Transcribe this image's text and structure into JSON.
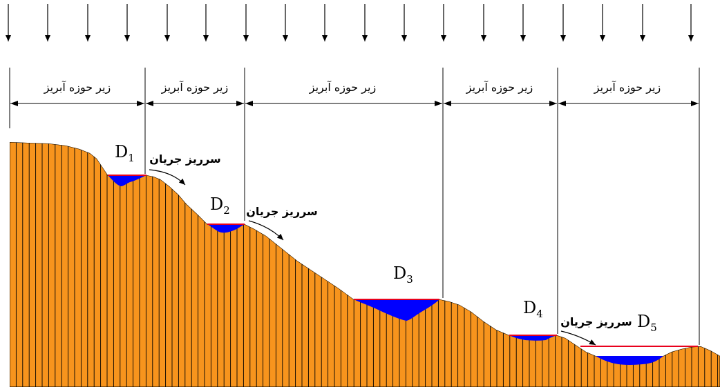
{
  "subwatershed_label": "زیر حوزه آبریز",
  "overflow_label": "سرریز جریان",
  "depressions": [
    {
      "letter": "D",
      "index": "1"
    },
    {
      "letter": "D",
      "index": "2"
    },
    {
      "letter": "D",
      "index": "3"
    },
    {
      "letter": "D",
      "index": "4"
    },
    {
      "letter": "D",
      "index": "5"
    }
  ],
  "colors": {
    "terrain_fill": "#f7941d",
    "terrain_lines": "#000000",
    "water": "#0000ff",
    "water_surface": "#e8001c",
    "lines": "#000000",
    "background": "#ffffff"
  }
}
